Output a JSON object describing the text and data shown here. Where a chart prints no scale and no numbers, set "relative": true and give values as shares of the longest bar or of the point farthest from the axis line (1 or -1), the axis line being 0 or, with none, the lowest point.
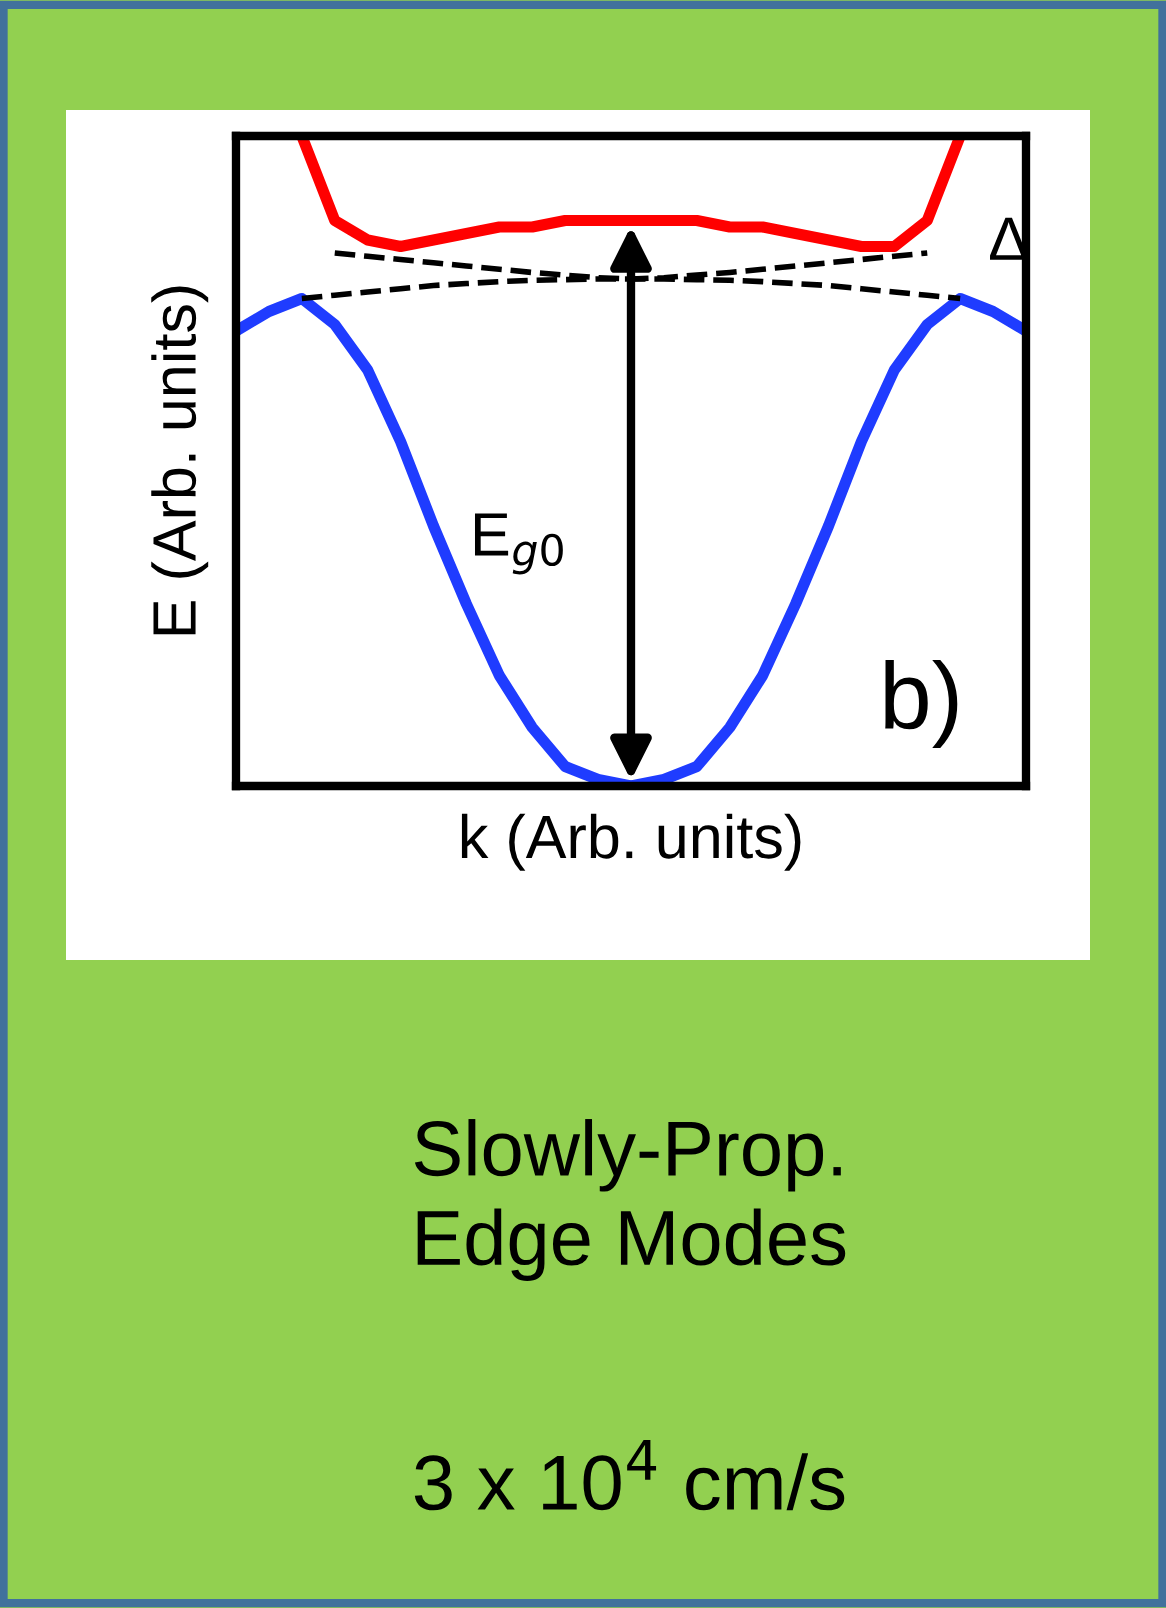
{
  "chart_data": {
    "type": "line",
    "relative": true,
    "xlabel": "k (Arb. units)",
    "ylabel": "E (Arb. units)",
    "tick_labels": false,
    "legend": false,
    "categories": [
      null,
      null,
      null,
      null,
      null,
      null,
      null,
      null,
      null,
      null,
      null,
      null,
      null,
      null,
      null,
      null,
      null,
      null,
      null,
      null,
      null,
      null,
      null,
      null,
      null
    ],
    "series": [
      {
        "color": "#1f3cff",
        "line_style": "solid",
        "values": [
          0.7,
          0.73,
          0.75,
          0.71,
          0.64,
          0.53,
          0.4,
          0.28,
          0.17,
          0.09,
          0.03,
          0.01,
          0,
          0.01,
          0.03,
          0.09,
          0.17,
          0.28,
          0.4,
          0.53,
          0.64,
          0.71,
          0.75,
          0.73,
          0.7
        ]
      },
      {
        "color": "#ff0000",
        "line_style": "solid",
        "values": [
          null,
          null,
          1.0,
          0.87,
          0.84,
          0.83,
          0.84,
          0.85,
          0.86,
          0.86,
          0.87,
          0.87,
          0.87,
          0.87,
          0.87,
          0.86,
          0.86,
          0.85,
          0.84,
          0.83,
          0.83,
          0.87,
          1.0,
          null,
          null
        ]
      },
      {
        "color": "#000000",
        "line_style": "dashed",
        "values": [
          null,
          null,
          0.75,
          0.755,
          0.76,
          0.765,
          0.77,
          0.773,
          0.776,
          0.778,
          0.779,
          0.78,
          0.78,
          0.78,
          0.779,
          0.778,
          0.776,
          0.773,
          0.77,
          0.765,
          0.76,
          0.755,
          0.75,
          null,
          null
        ]
      },
      {
        "color": "#000000",
        "line_style": "dashed",
        "values": [
          null,
          null,
          null,
          0.82,
          0.815,
          0.81,
          0.805,
          0.8,
          0.795,
          0.79,
          0.786,
          0.782,
          0.78,
          0.782,
          0.786,
          0.79,
          0.795,
          0.8,
          0.805,
          0.81,
          0.815,
          0.82,
          null,
          null,
          null
        ]
      }
    ],
    "annotations": [
      "Δ",
      "E$_{g0}$",
      "b)",
      "Slowly-Prop.\nEdge Modes",
      "3 x 10$^{4}$ cm/s"
    ]
  }
}
